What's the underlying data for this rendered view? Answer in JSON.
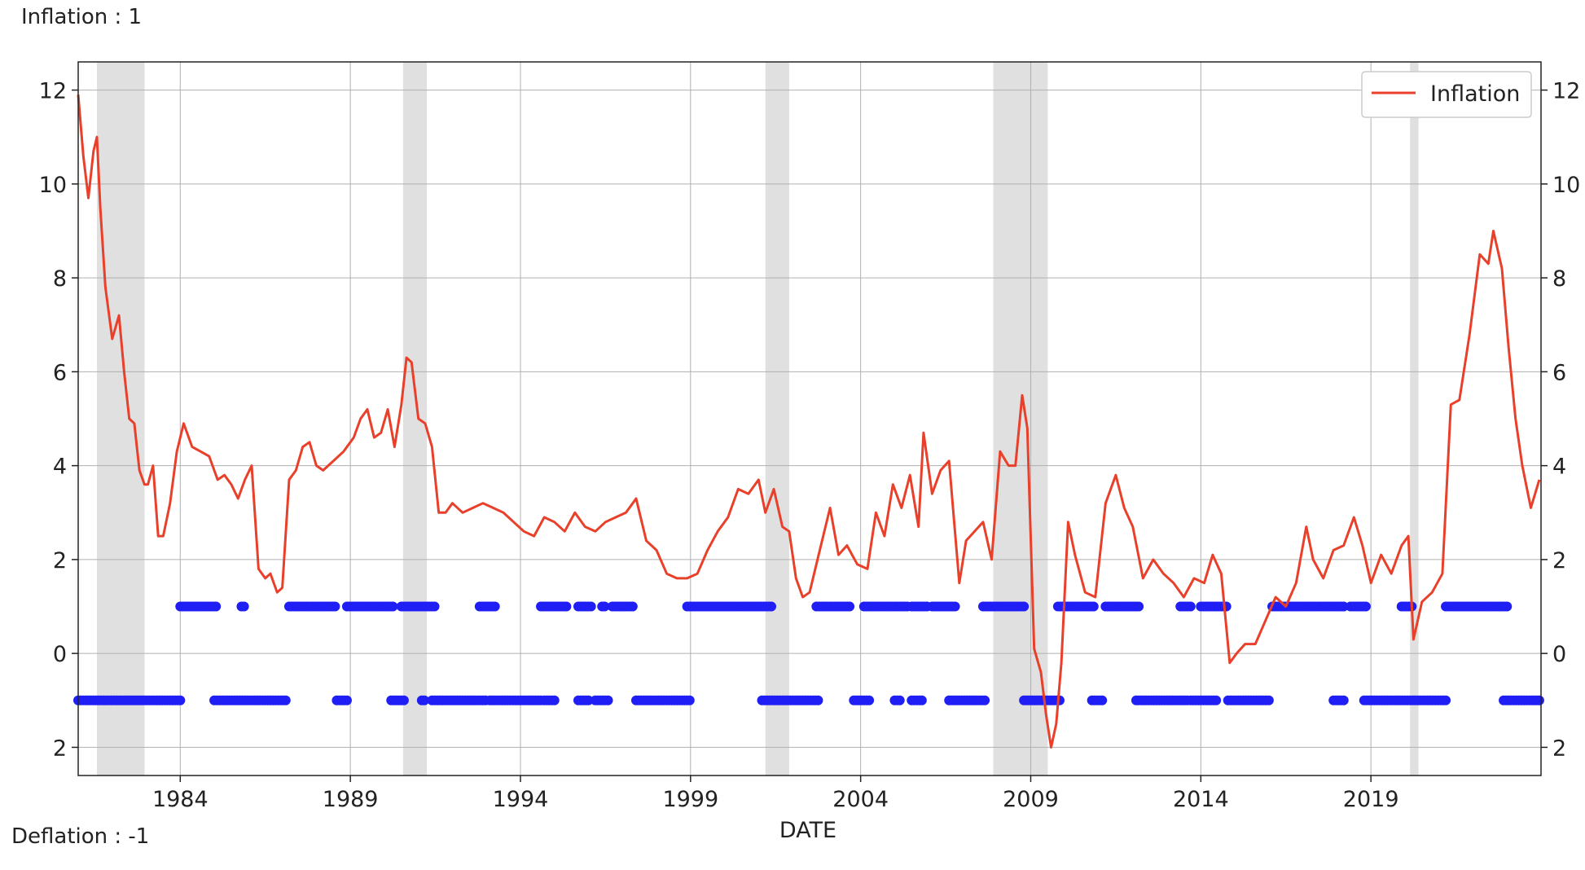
{
  "notes": {
    "top": "Inflation : 1",
    "bottom": "Deflation : -1"
  },
  "chart_data": {
    "type": "line",
    "title": "",
    "xlabel": "DATE",
    "ylabel": "",
    "xlim": [
      1981.0,
      2024.0
    ],
    "ylim": [
      -2.6,
      12.6
    ],
    "ytick_values": [
      12,
      10,
      8,
      6,
      4,
      2,
      0,
      -2
    ],
    "ytick_labels": [
      "12",
      "10",
      "8",
      "6",
      "4",
      "2",
      "0",
      "2"
    ],
    "xtick_values": [
      1984,
      1989,
      1994,
      1999,
      2004,
      2009,
      2014,
      2019
    ],
    "xtick_labels": [
      "1984",
      "1989",
      "1994",
      "1999",
      "2004",
      "2009",
      "2014",
      "2019"
    ],
    "grid": true,
    "legend_position": "top-right",
    "colors": {
      "inflation_line": "#e8402a",
      "indicator_dots": "#1f1ff5",
      "recession_band": "#e0e0e0",
      "grid": "#b0b0b0"
    },
    "recessions": [
      [
        1981.55,
        1982.95
      ],
      [
        1990.55,
        1991.25
      ],
      [
        2001.2,
        2001.9
      ],
      [
        2007.9,
        2009.5
      ],
      [
        2020.15,
        2020.4
      ]
    ],
    "series": [
      {
        "name": "Inflation",
        "x": [
          1981.0,
          1981.15,
          1981.3,
          1981.45,
          1981.55,
          1981.65,
          1981.8,
          1982.0,
          1982.2,
          1982.35,
          1982.5,
          1982.65,
          1982.8,
          1982.95,
          1983.05,
          1983.2,
          1983.35,
          1983.5,
          1983.7,
          1983.9,
          1984.1,
          1984.35,
          1984.6,
          1984.85,
          1985.1,
          1985.3,
          1985.5,
          1985.7,
          1985.9,
          1986.1,
          1986.3,
          1986.5,
          1986.65,
          1986.85,
          1987.0,
          1987.2,
          1987.4,
          1987.6,
          1987.8,
          1988.0,
          1988.2,
          1988.5,
          1988.8,
          1989.1,
          1989.3,
          1989.5,
          1989.7,
          1989.9,
          1990.1,
          1990.3,
          1990.5,
          1990.65,
          1990.8,
          1991.0,
          1991.2,
          1991.4,
          1991.6,
          1991.8,
          1992.0,
          1992.3,
          1992.6,
          1992.9,
          1993.2,
          1993.5,
          1993.8,
          1994.1,
          1994.4,
          1994.7,
          1995.0,
          1995.3,
          1995.6,
          1995.9,
          1996.2,
          1996.5,
          1996.8,
          1997.1,
          1997.4,
          1997.7,
          1998.0,
          1998.3,
          1998.6,
          1998.9,
          1999.2,
          1999.5,
          1999.8,
          2000.1,
          2000.4,
          2000.7,
          2001.0,
          2001.2,
          2001.45,
          2001.7,
          2001.9,
          2002.1,
          2002.3,
          2002.5,
          2002.8,
          2003.1,
          2003.35,
          2003.6,
          2003.9,
          2004.2,
          2004.45,
          2004.7,
          2004.95,
          2005.2,
          2005.45,
          2005.7,
          2005.85,
          2006.1,
          2006.35,
          2006.6,
          2006.9,
          2007.1,
          2007.35,
          2007.6,
          2007.85,
          2008.1,
          2008.35,
          2008.55,
          2008.75,
          2008.9,
          2009.1,
          2009.3,
          2009.45,
          2009.6,
          2009.75,
          2009.9,
          2010.1,
          2010.3,
          2010.6,
          2010.9,
          2011.2,
          2011.5,
          2011.75,
          2012.0,
          2012.3,
          2012.6,
          2012.9,
          2013.2,
          2013.5,
          2013.8,
          2014.1,
          2014.35,
          2014.6,
          2014.85,
          2015.05,
          2015.3,
          2015.6,
          2015.9,
          2016.2,
          2016.5,
          2016.8,
          2017.1,
          2017.3,
          2017.6,
          2017.9,
          2018.2,
          2018.5,
          2018.75,
          2019.0,
          2019.3,
          2019.6,
          2019.9,
          2020.1,
          2020.25,
          2020.5,
          2020.8,
          2021.1,
          2021.35,
          2021.6,
          2021.9,
          2022.2,
          2022.45,
          2022.6,
          2022.85,
          2023.05,
          2023.25,
          2023.45,
          2023.7,
          2023.95
        ],
        "y": [
          11.9,
          10.6,
          9.7,
          10.7,
          11.0,
          9.5,
          7.8,
          6.7,
          7.2,
          6.0,
          5.0,
          4.9,
          3.9,
          3.6,
          3.6,
          4.0,
          2.5,
          2.5,
          3.2,
          4.3,
          4.9,
          4.4,
          4.3,
          4.2,
          3.7,
          3.8,
          3.6,
          3.3,
          3.7,
          4.0,
          1.8,
          1.6,
          1.7,
          1.3,
          1.4,
          3.7,
          3.9,
          4.4,
          4.5,
          4.0,
          3.9,
          4.1,
          4.3,
          4.6,
          5.0,
          5.2,
          4.6,
          4.7,
          5.2,
          4.4,
          5.3,
          6.3,
          6.2,
          5.0,
          4.9,
          4.4,
          3.0,
          3.0,
          3.2,
          3.0,
          3.1,
          3.2,
          3.1,
          3.0,
          2.8,
          2.6,
          2.5,
          2.9,
          2.8,
          2.6,
          3.0,
          2.7,
          2.6,
          2.8,
          2.9,
          3.0,
          3.3,
          2.4,
          2.2,
          1.7,
          1.6,
          1.6,
          1.7,
          2.2,
          2.6,
          2.9,
          3.5,
          3.4,
          3.7,
          3.0,
          3.5,
          2.7,
          2.6,
          1.6,
          1.2,
          1.3,
          2.2,
          3.1,
          2.1,
          2.3,
          1.9,
          1.8,
          3.0,
          2.5,
          3.6,
          3.1,
          3.8,
          2.7,
          4.7,
          3.4,
          3.9,
          4.1,
          1.5,
          2.4,
          2.6,
          2.8,
          2.0,
          4.3,
          4.0,
          4.0,
          5.5,
          4.8,
          0.1,
          -0.4,
          -1.3,
          -2.0,
          -1.5,
          -0.2,
          2.8,
          2.1,
          1.3,
          1.2,
          3.2,
          3.8,
          3.1,
          2.7,
          1.6,
          2.0,
          1.7,
          1.5,
          1.2,
          1.6,
          1.5,
          2.1,
          1.7,
          -0.2,
          0.0,
          0.2,
          0.2,
          0.7,
          1.2,
          1.0,
          1.5,
          2.7,
          2.0,
          1.6,
          2.2,
          2.3,
          2.9,
          2.3,
          1.5,
          2.1,
          1.7,
          2.3,
          2.5,
          0.3,
          1.1,
          1.3,
          1.7,
          5.3,
          5.4,
          6.8,
          8.5,
          8.3,
          9.0,
          8.2,
          6.5,
          5.0,
          4.0,
          3.1,
          3.7
        ]
      },
      {
        "name": "",
        "style": "dots",
        "value": 1,
        "segments": [
          [
            1984.0,
            1985.1
          ],
          [
            1985.8,
            1985.9
          ],
          [
            1987.2,
            1988.6
          ],
          [
            1988.9,
            1990.3
          ],
          [
            1990.5,
            1991.5
          ],
          [
            1992.8,
            1993.3
          ],
          [
            1994.6,
            1995.4
          ],
          [
            1995.7,
            1996.1
          ],
          [
            1996.4,
            1996.5
          ],
          [
            1996.7,
            1997.3
          ],
          [
            1998.9,
            2001.4
          ],
          [
            2002.7,
            2003.7
          ],
          [
            2004.1,
            2005.4
          ],
          [
            2005.5,
            2006.0
          ],
          [
            2006.1,
            2006.8
          ],
          [
            2007.6,
            2008.8
          ],
          [
            2009.8,
            2010.9
          ],
          [
            2011.2,
            2012.2
          ],
          [
            2013.4,
            2013.7
          ],
          [
            2014.0,
            2014.8
          ],
          [
            2016.1,
            2018.2
          ],
          [
            2018.4,
            2018.9
          ],
          [
            2019.9,
            2020.2
          ],
          [
            2021.2,
            2023.0
          ]
        ]
      },
      {
        "name": "",
        "style": "dots",
        "value": -1,
        "segments": [
          [
            1981.0,
            1984.0
          ],
          [
            1985.0,
            1987.1
          ],
          [
            1988.6,
            1988.9
          ],
          [
            1990.2,
            1990.6
          ],
          [
            1991.1,
            1991.2
          ],
          [
            1991.4,
            1993.0
          ],
          [
            1993.1,
            1994.6
          ],
          [
            1994.7,
            1995.0
          ],
          [
            1995.7,
            1996.0
          ],
          [
            1996.2,
            1996.6
          ],
          [
            1997.4,
            1999.0
          ],
          [
            2001.1,
            2002.8
          ],
          [
            2003.8,
            2004.3
          ],
          [
            2005.0,
            2005.2
          ],
          [
            2005.5,
            2005.8
          ],
          [
            2006.6,
            2007.7
          ],
          [
            2008.8,
            2009.9
          ],
          [
            2010.8,
            2011.1
          ],
          [
            2012.1,
            2013.6
          ],
          [
            2013.7,
            2014.5
          ],
          [
            2014.8,
            2016.0
          ],
          [
            2017.9,
            2018.2
          ],
          [
            2018.8,
            2021.2
          ],
          [
            2022.9,
            2024.0
          ]
        ]
      }
    ]
  }
}
